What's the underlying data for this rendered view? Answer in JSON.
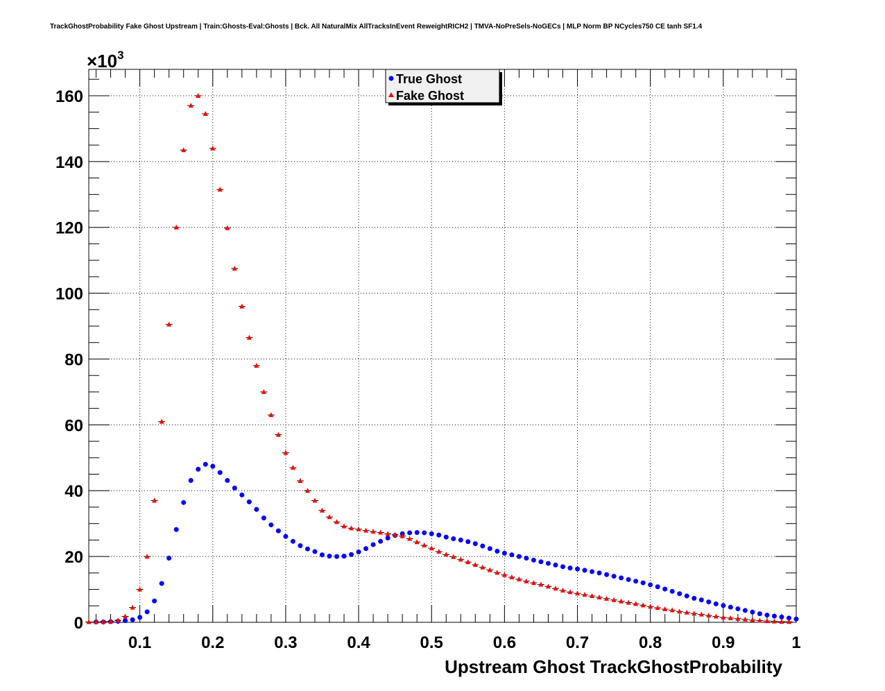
{
  "chart_data": {
    "type": "scatter",
    "title": "TrackGhostProbability Fake Ghost Upstream | Train:Ghosts-Eval:Ghosts | Bck. All NaturalMix AllTracksInEvent ReweightRICH2 | TMVA-NoPreSels-NoGECs | MLP Norm BP NCycles750 CE tanh SF1.4",
    "xlabel": "Upstream Ghost TrackGhostProbability",
    "ylabel": "",
    "y_multiplier": "×10",
    "y_multiplier_exp": "3",
    "xlim": [
      0.03,
      1.0
    ],
    "ylim": [
      0,
      168
    ],
    "x_ticks": [
      "0.1",
      "0.2",
      "0.3",
      "0.4",
      "0.5",
      "0.6",
      "0.7",
      "0.8",
      "0.9",
      "1"
    ],
    "x_tick_values": [
      0.1,
      0.2,
      0.3,
      0.4,
      0.5,
      0.6,
      0.7,
      0.8,
      0.9,
      1.0
    ],
    "y_ticks": [
      "0",
      "20",
      "40",
      "60",
      "80",
      "100",
      "120",
      "140",
      "160"
    ],
    "y_tick_values": [
      0,
      20,
      40,
      60,
      80,
      100,
      120,
      140,
      160
    ],
    "grid": true,
    "legend_position": "top-center",
    "series": [
      {
        "name": "True Ghost",
        "color": "#0000ff",
        "marker": "circle",
        "x": [
          0.04,
          0.05,
          0.06,
          0.07,
          0.08,
          0.09,
          0.1,
          0.11,
          0.12,
          0.13,
          0.14,
          0.15,
          0.16,
          0.17,
          0.18,
          0.19,
          0.2,
          0.21,
          0.22,
          0.23,
          0.24,
          0.25,
          0.26,
          0.27,
          0.28,
          0.29,
          0.3,
          0.31,
          0.32,
          0.33,
          0.34,
          0.35,
          0.36,
          0.37,
          0.38,
          0.39,
          0.4,
          0.41,
          0.42,
          0.43,
          0.44,
          0.45,
          0.46,
          0.47,
          0.48,
          0.49,
          0.5,
          0.51,
          0.52,
          0.53,
          0.54,
          0.55,
          0.56,
          0.57,
          0.58,
          0.59,
          0.6,
          0.61,
          0.62,
          0.63,
          0.64,
          0.65,
          0.66,
          0.67,
          0.68,
          0.69,
          0.7,
          0.71,
          0.72,
          0.73,
          0.74,
          0.75,
          0.76,
          0.77,
          0.78,
          0.79,
          0.8,
          0.81,
          0.82,
          0.83,
          0.84,
          0.85,
          0.86,
          0.87,
          0.88,
          0.89,
          0.9,
          0.91,
          0.92,
          0.93,
          0.94,
          0.95,
          0.96,
          0.97,
          0.98,
          0.99,
          1.0
        ],
        "values": [
          0.1,
          0.1,
          0.2,
          0.3,
          0.5,
          0.8,
          1.5,
          3.2,
          6.5,
          11.8,
          19.5,
          28.2,
          36.4,
          43.1,
          46.5,
          48.0,
          47.4,
          45.5,
          43.1,
          40.8,
          38.7,
          36.6,
          34.3,
          31.7,
          29.6,
          27.8,
          26.1,
          24.6,
          23.3,
          22.3,
          21.5,
          20.5,
          20.1,
          20.0,
          20.1,
          20.6,
          21.4,
          22.4,
          23.6,
          24.6,
          25.6,
          26.4,
          26.9,
          27.2,
          27.3,
          27.2,
          26.9,
          26.5,
          25.9,
          25.4,
          25.0,
          24.5,
          23.9,
          23.2,
          22.4,
          21.6,
          21.0,
          20.5,
          20.0,
          19.5,
          18.9,
          18.4,
          17.9,
          17.4,
          16.9,
          16.5,
          16.2,
          15.8,
          15.4,
          15.0,
          14.5,
          14.0,
          13.5,
          13.0,
          12.5,
          12.0,
          11.4,
          10.8,
          10.1,
          9.4,
          8.7,
          8.0,
          7.3,
          6.8,
          6.2,
          5.6,
          5.1,
          4.6,
          4.1,
          3.6,
          3.1,
          2.6,
          2.2,
          1.9,
          1.6,
          1.3,
          1.0
        ]
      },
      {
        "name": "Fake Ghost",
        "color": "#ff0000",
        "marker": "triangle",
        "x": [
          0.03,
          0.04,
          0.05,
          0.06,
          0.07,
          0.08,
          0.09,
          0.1,
          0.11,
          0.12,
          0.13,
          0.14,
          0.15,
          0.16,
          0.17,
          0.18,
          0.19,
          0.2,
          0.21,
          0.22,
          0.23,
          0.24,
          0.25,
          0.26,
          0.27,
          0.28,
          0.29,
          0.3,
          0.31,
          0.32,
          0.33,
          0.34,
          0.35,
          0.36,
          0.37,
          0.38,
          0.39,
          0.4,
          0.41,
          0.42,
          0.43,
          0.44,
          0.45,
          0.46,
          0.47,
          0.48,
          0.49,
          0.5,
          0.51,
          0.52,
          0.53,
          0.54,
          0.55,
          0.56,
          0.57,
          0.58,
          0.59,
          0.6,
          0.61,
          0.62,
          0.63,
          0.64,
          0.65,
          0.66,
          0.67,
          0.68,
          0.69,
          0.7,
          0.71,
          0.72,
          0.73,
          0.74,
          0.75,
          0.76,
          0.77,
          0.78,
          0.79,
          0.8,
          0.81,
          0.82,
          0.83,
          0.84,
          0.85,
          0.86,
          0.87,
          0.88,
          0.89,
          0.9,
          0.91,
          0.92,
          0.93,
          0.94,
          0.95,
          0.96,
          0.97,
          0.98,
          0.99
        ],
        "values": [
          0.1,
          0.1,
          0.2,
          0.3,
          0.6,
          1.8,
          4.5,
          10.0,
          20.0,
          37.0,
          61.0,
          90.5,
          120.0,
          143.5,
          157.0,
          160.0,
          154.5,
          144.0,
          131.5,
          119.8,
          107.5,
          96.0,
          86.5,
          78.0,
          70.0,
          63.0,
          57.0,
          51.5,
          47.0,
          43.0,
          40.0,
          37.0,
          34.0,
          32.0,
          30.5,
          29.2,
          28.6,
          28.3,
          27.9,
          27.6,
          27.3,
          26.9,
          26.6,
          26.2,
          25.4,
          24.4,
          23.4,
          22.5,
          21.5,
          20.6,
          19.9,
          19.1,
          18.3,
          17.5,
          16.7,
          15.9,
          15.1,
          14.4,
          13.7,
          13.1,
          12.5,
          12.0,
          11.5,
          10.9,
          10.3,
          9.7,
          9.2,
          8.8,
          8.4,
          8.0,
          7.6,
          7.2,
          6.8,
          6.4,
          6.0,
          5.6,
          5.2,
          4.8,
          4.4,
          4.0,
          3.7,
          3.3,
          3.0,
          2.7,
          2.4,
          2.1,
          1.8,
          1.5,
          1.3,
          1.1,
          0.9,
          0.7,
          0.55,
          0.4,
          0.3,
          0.2,
          0.15
        ]
      }
    ]
  }
}
